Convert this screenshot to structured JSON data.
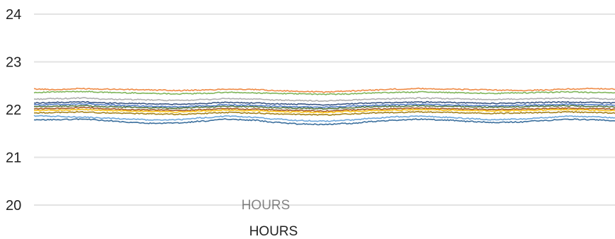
{
  "chart_data": {
    "type": "line",
    "title": "",
    "xlabel": "HOURS",
    "ylabel": "",
    "ylim": [
      20,
      24
    ],
    "yticks": [
      "20",
      "21",
      "22",
      "23",
      "24"
    ],
    "grid": true,
    "legend": "none",
    "x": [
      0,
      1,
      2,
      3,
      4,
      5,
      6,
      7,
      8,
      9,
      10,
      11,
      12,
      13,
      14,
      15,
      16,
      17,
      18,
      19,
      20,
      21,
      22,
      23,
      24
    ],
    "series": [
      {
        "color": "#ed7d31",
        "values": [
          22.43,
          22.42,
          22.44,
          22.43,
          22.42,
          22.41,
          22.4,
          22.41,
          22.43,
          22.42,
          22.4,
          22.38,
          22.37,
          22.39,
          22.41,
          22.43,
          22.44,
          22.43,
          22.42,
          22.41,
          22.4,
          22.41,
          22.43,
          22.44,
          22.43
        ]
      },
      {
        "color": "#70ad47",
        "values": [
          22.36,
          22.37,
          22.38,
          22.36,
          22.35,
          22.34,
          22.33,
          22.34,
          22.36,
          22.35,
          22.34,
          22.33,
          22.32,
          22.33,
          22.35,
          22.36,
          22.37,
          22.36,
          22.35,
          22.34,
          22.35,
          22.36,
          22.37,
          22.36,
          22.35
        ]
      },
      {
        "color": "#a5a5a5",
        "values": [
          22.22,
          22.23,
          22.24,
          22.22,
          22.21,
          22.2,
          22.19,
          22.21,
          22.23,
          22.22,
          22.2,
          22.19,
          22.18,
          22.2,
          22.22,
          22.23,
          22.24,
          22.23,
          22.22,
          22.21,
          22.22,
          22.23,
          22.24,
          22.23,
          22.22
        ]
      },
      {
        "color": "#264478",
        "values": [
          22.14,
          22.15,
          22.16,
          22.14,
          22.13,
          22.12,
          22.11,
          22.13,
          22.15,
          22.14,
          22.12,
          22.11,
          22.1,
          22.12,
          22.14,
          22.15,
          22.16,
          22.15,
          22.14,
          22.13,
          22.14,
          22.15,
          22.16,
          22.15,
          22.14
        ]
      },
      {
        "color": "#4472c4",
        "values": [
          22.1,
          22.11,
          22.12,
          22.1,
          22.08,
          22.07,
          22.06,
          22.08,
          22.1,
          22.09,
          22.07,
          22.06,
          22.05,
          22.07,
          22.09,
          22.1,
          22.11,
          22.1,
          22.09,
          22.08,
          22.09,
          22.1,
          22.11,
          22.1,
          22.09
        ]
      },
      {
        "color": "#43682b",
        "values": [
          22.06,
          22.07,
          22.08,
          22.06,
          22.05,
          22.04,
          22.03,
          22.05,
          22.07,
          22.06,
          22.04,
          22.03,
          22.02,
          22.04,
          22.06,
          22.07,
          22.08,
          22.07,
          22.06,
          22.05,
          22.06,
          22.07,
          22.08,
          22.07,
          22.06
        ]
      },
      {
        "color": "#9e480e",
        "values": [
          22.02,
          22.03,
          22.04,
          22.02,
          22.0,
          21.99,
          21.98,
          22.0,
          22.02,
          22.01,
          21.99,
          21.98,
          21.97,
          21.99,
          22.01,
          22.02,
          22.03,
          22.02,
          22.01,
          22.0,
          22.01,
          22.02,
          22.03,
          22.02,
          22.01
        ]
      },
      {
        "color": "#ffc000",
        "values": [
          21.98,
          21.99,
          22.0,
          21.98,
          21.97,
          21.96,
          21.95,
          21.97,
          21.99,
          21.98,
          21.96,
          21.95,
          21.94,
          21.96,
          21.98,
          21.99,
          22.0,
          21.99,
          21.98,
          21.97,
          21.98,
          21.99,
          22.0,
          21.99,
          21.98
        ]
      },
      {
        "color": "#997300",
        "values": [
          21.93,
          21.94,
          21.95,
          21.93,
          21.92,
          21.91,
          21.9,
          21.92,
          21.94,
          21.93,
          21.91,
          21.9,
          21.89,
          21.91,
          21.93,
          21.94,
          21.95,
          21.94,
          21.93,
          21.92,
          21.93,
          21.94,
          21.95,
          21.94,
          21.93
        ]
      },
      {
        "color": "#5b9bd5",
        "values": [
          21.87,
          21.86,
          21.84,
          21.82,
          21.8,
          21.78,
          21.79,
          21.83,
          21.86,
          21.84,
          21.8,
          21.77,
          21.76,
          21.78,
          21.82,
          21.85,
          21.86,
          21.84,
          21.81,
          21.79,
          21.8,
          21.83,
          21.86,
          21.85,
          21.83
        ]
      },
      {
        "color": "#255e91",
        "values": [
          21.78,
          21.79,
          21.8,
          21.77,
          21.73,
          21.71,
          21.72,
          21.76,
          21.8,
          21.78,
          21.73,
          21.7,
          21.69,
          21.71,
          21.75,
          21.78,
          21.8,
          21.78,
          21.75,
          21.73,
          21.74,
          21.77,
          21.8,
          21.79,
          21.77
        ]
      }
    ]
  }
}
